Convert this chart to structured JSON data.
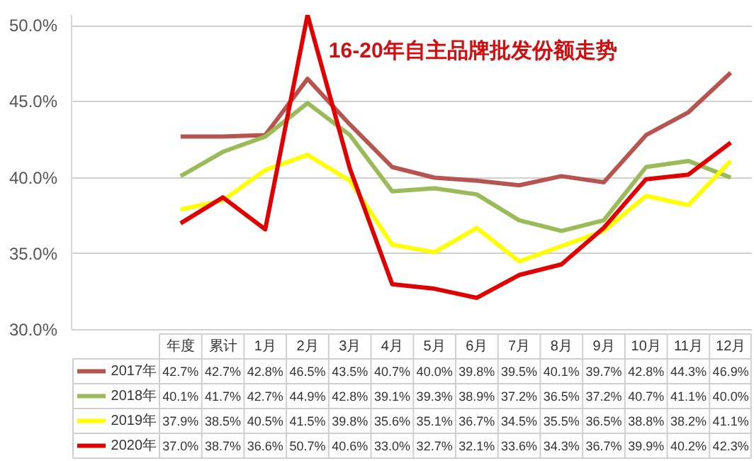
{
  "chart_data": {
    "type": "line",
    "title": "16-20年自主品牌批发份额走势",
    "categories": [
      "年度",
      "累计",
      "1月",
      "2月",
      "3月",
      "4月",
      "5月",
      "6月",
      "7月",
      "8月",
      "9月",
      "10月",
      "11月",
      "12月"
    ],
    "series": [
      {
        "name": "2017年",
        "color": "#b85450",
        "values": [
          42.7,
          42.7,
          42.8,
          46.5,
          43.5,
          40.7,
          40.0,
          39.8,
          39.5,
          40.1,
          39.7,
          42.8,
          44.3,
          46.9
        ],
        "value_labels": [
          "42.7%",
          "42.7%",
          "42.8%",
          "46.5%",
          "43.5%",
          "40.7%",
          "40.0%",
          "39.8%",
          "39.5%",
          "40.1%",
          "39.7%",
          "42.8%",
          "44.3%",
          "46.9%"
        ]
      },
      {
        "name": "2018年",
        "color": "#9bbb59",
        "values": [
          40.1,
          41.7,
          42.7,
          44.9,
          42.8,
          39.1,
          39.3,
          38.9,
          37.2,
          36.5,
          37.2,
          40.7,
          41.1,
          40.0
        ],
        "value_labels": [
          "40.1%",
          "41.7%",
          "42.7%",
          "44.9%",
          "42.8%",
          "39.1%",
          "39.3%",
          "38.9%",
          "37.2%",
          "36.5%",
          "37.2%",
          "40.7%",
          "41.1%",
          "40.0%"
        ]
      },
      {
        "name": "2019年",
        "color": "#ffff00",
        "values": [
          37.9,
          38.5,
          40.5,
          41.5,
          39.8,
          35.6,
          35.1,
          36.7,
          34.5,
          35.5,
          36.5,
          38.8,
          38.2,
          41.1
        ],
        "value_labels": [
          "37.9%",
          "38.5%",
          "40.5%",
          "41.5%",
          "39.8%",
          "35.6%",
          "35.1%",
          "36.7%",
          "34.5%",
          "35.5%",
          "36.5%",
          "38.8%",
          "38.2%",
          "41.1%"
        ]
      },
      {
        "name": "2020年",
        "color": "#e00000",
        "values": [
          37.0,
          38.7,
          36.6,
          50.7,
          40.6,
          33.0,
          32.7,
          32.1,
          33.6,
          34.3,
          36.7,
          39.9,
          40.2,
          42.3
        ],
        "value_labels": [
          "37.0%",
          "38.7%",
          "36.6%",
          "50.7%",
          "40.6%",
          "33.0%",
          "32.7%",
          "32.1%",
          "33.6%",
          "34.3%",
          "36.7%",
          "39.9%",
          "40.2%",
          "42.3%"
        ]
      }
    ],
    "ylim": [
      30,
      50.7
    ],
    "yticks": [
      {
        "value": 30,
        "label": "30.0%"
      },
      {
        "value": 35,
        "label": "35.0%"
      },
      {
        "value": 40,
        "label": "40.0%"
      },
      {
        "value": 45,
        "label": "45.0%"
      },
      {
        "value": 50,
        "label": "50.0%"
      }
    ],
    "grid": "y",
    "legend": "bottom",
    "marker": "none",
    "line_style": "solid"
  }
}
